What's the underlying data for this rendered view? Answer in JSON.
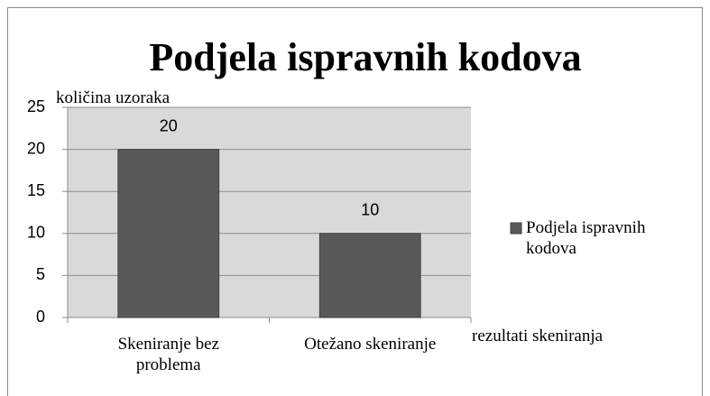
{
  "chart_data": {
    "type": "bar",
    "title": "Podjela ispravnih kodova",
    "y_label": "količina uzoraka",
    "x_label": "rezultati skeniranja",
    "categories": [
      "Skeniranje bez problema",
      "Otežano skeniranje"
    ],
    "series": [
      {
        "name": "Podjela ispravnih kodova",
        "color": "#595959",
        "values": [
          20,
          10
        ]
      }
    ],
    "ylim": [
      0,
      25
    ],
    "yticks": [
      0,
      5,
      10,
      15,
      20,
      25
    ],
    "grid": true,
    "legend": "right"
  }
}
